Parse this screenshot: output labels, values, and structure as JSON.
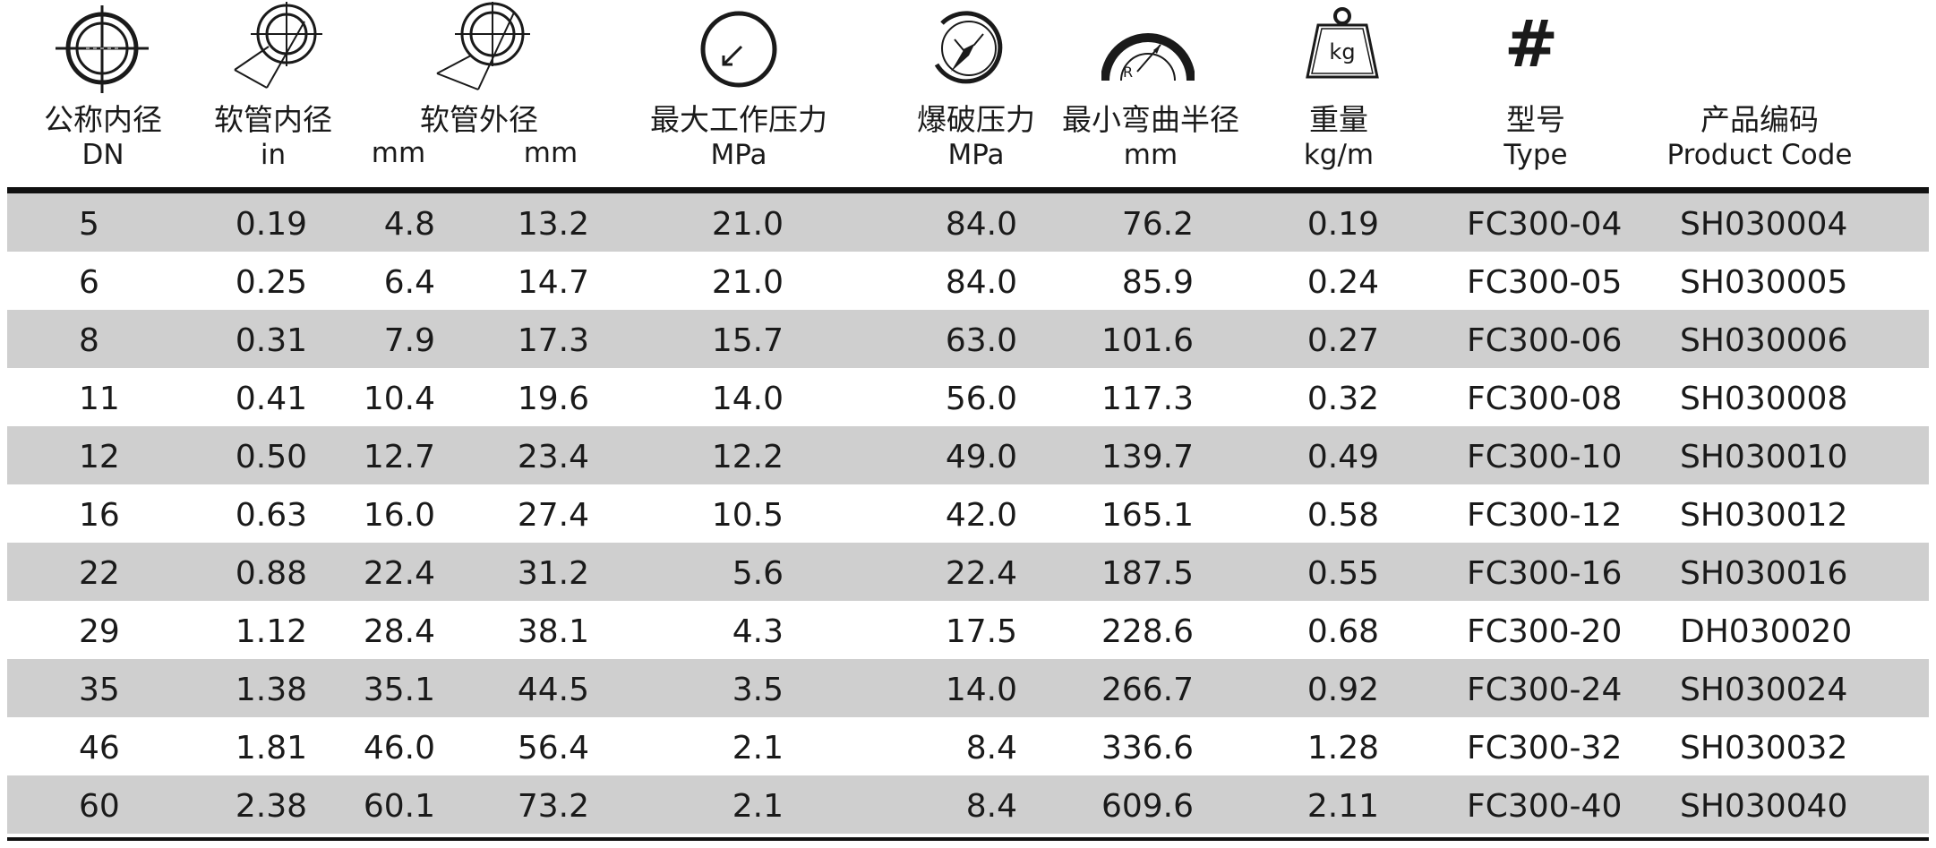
{
  "headers": {
    "dn": {
      "zh": "公称内径",
      "unit": "DN"
    },
    "hose_id": {
      "zh": "软管内径",
      "unit_in": "in",
      "unit_mm": "mm"
    },
    "hose_od": {
      "zh": "软管外径",
      "unit": "mm"
    },
    "max_wp": {
      "zh": "最大工作压力",
      "unit": "MPa"
    },
    "burst": {
      "zh": "爆破压力",
      "unit": "MPa"
    },
    "bend": {
      "zh": "最小弯曲半径",
      "unit": "mm"
    },
    "weight": {
      "zh": "重量",
      "unit": "kg/m",
      "icon_text": "kg"
    },
    "type": {
      "zh": "型号",
      "en": "Type",
      "icon_text": "#"
    },
    "code": {
      "zh": "产品编码",
      "en": "Product Code"
    }
  },
  "icons": [
    "crosshair-circle-icon",
    "inner-diameter-icon",
    "outer-diameter-icon",
    "pressure-gauge-icon",
    "burst-gauge-icon",
    "bend-radius-icon",
    "weight-icon",
    "hash-icon"
  ],
  "rows": [
    {
      "dn": "5",
      "in": "0.19",
      "mm": "4.8",
      "od": "13.2",
      "wp": "21.0",
      "burst": "84.0",
      "bend": "76.2",
      "kg": "0.19",
      "type": "FC300-04",
      "code": "SH030004"
    },
    {
      "dn": "6",
      "in": "0.25",
      "mm": "6.4",
      "od": "14.7",
      "wp": "21.0",
      "burst": "84.0",
      "bend": "85.9",
      "kg": "0.24",
      "type": "FC300-05",
      "code": "SH030005"
    },
    {
      "dn": "8",
      "in": "0.31",
      "mm": "7.9",
      "od": "17.3",
      "wp": "15.7",
      "burst": "63.0",
      "bend": "101.6",
      "kg": "0.27",
      "type": "FC300-06",
      "code": "SH030006"
    },
    {
      "dn": "11",
      "in": "0.41",
      "mm": "10.4",
      "od": "19.6",
      "wp": "14.0",
      "burst": "56.0",
      "bend": "117.3",
      "kg": "0.32",
      "type": "FC300-08",
      "code": "SH030008"
    },
    {
      "dn": "12",
      "in": "0.50",
      "mm": "12.7",
      "od": "23.4",
      "wp": "12.2",
      "burst": "49.0",
      "bend": "139.7",
      "kg": "0.49",
      "type": "FC300-10",
      "code": "SH030010"
    },
    {
      "dn": "16",
      "in": "0.63",
      "mm": "16.0",
      "od": "27.4",
      "wp": "10.5",
      "burst": "42.0",
      "bend": "165.1",
      "kg": "0.58",
      "type": "FC300-12",
      "code": "SH030012"
    },
    {
      "dn": "22",
      "in": "0.88",
      "mm": "22.4",
      "od": "31.2",
      "wp": "5.6",
      "burst": "22.4",
      "bend": "187.5",
      "kg": "0.55",
      "type": "FC300-16",
      "code": "SH030016"
    },
    {
      "dn": "29",
      "in": "1.12",
      "mm": "28.4",
      "od": "38.1",
      "wp": "4.3",
      "burst": "17.5",
      "bend": "228.6",
      "kg": "0.68",
      "type": "FC300-20",
      "code": "DH030020"
    },
    {
      "dn": "35",
      "in": "1.38",
      "mm": "35.1",
      "od": "44.5",
      "wp": "3.5",
      "burst": "14.0",
      "bend": "266.7",
      "kg": "0.92",
      "type": "FC300-24",
      "code": "SH030024"
    },
    {
      "dn": "46",
      "in": "1.81",
      "mm": "46.0",
      "od": "56.4",
      "wp": "2.1",
      "burst": "8.4",
      "bend": "336.6",
      "kg": "1.28",
      "type": "FC300-32",
      "code": "SH030032"
    },
    {
      "dn": "60",
      "in": "2.38",
      "mm": "60.1",
      "od": "73.2",
      "wp": "2.1",
      "burst": "8.4",
      "bend": "609.6",
      "kg": "2.11",
      "type": "FC300-40",
      "code": "SH030040"
    }
  ]
}
